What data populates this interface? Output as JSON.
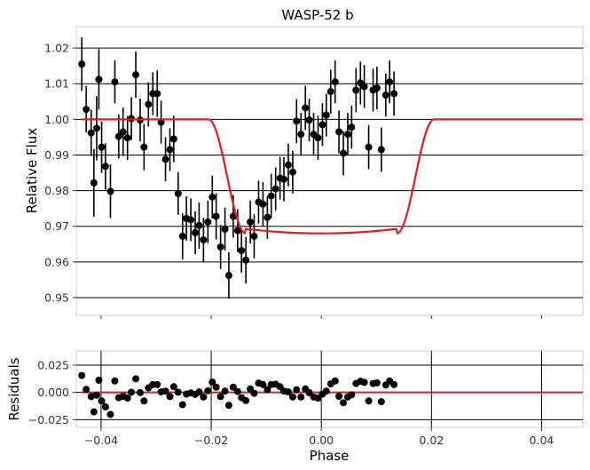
{
  "chart_data": [
    {
      "type": "scatter",
      "title": "WASP-52 b",
      "xlabel": "",
      "ylabel": "Relative Flux",
      "xlim": [
        -0.0445,
        0.0475
      ],
      "ylim": [
        0.945,
        1.026
      ],
      "grid": "horizontal",
      "x_ticks": [
        -0.04,
        -0.02,
        0.0,
        0.02,
        0.04
      ],
      "y_ticks": [
        0.95,
        0.96,
        0.97,
        0.98,
        0.99,
        1.0,
        1.01,
        1.02
      ],
      "y_tick_labels": [
        "0.95",
        "0.96",
        "0.97",
        "0.98",
        "0.99",
        "1.00",
        "1.01",
        "1.02"
      ],
      "marker_color": "#000000",
      "model_color": "#e41a1c",
      "series": [
        {
          "kind": "points_with_errors",
          "points": [
            [
              -0.0435,
              1.0155,
              0.0075
            ],
            [
              -0.0427,
              1.0028,
              0.0065
            ],
            [
              -0.0418,
              0.9962,
              0.0065
            ],
            [
              -0.0413,
              0.9822,
              0.0095
            ],
            [
              -0.0408,
              0.9975,
              0.009
            ],
            [
              -0.0404,
              1.0112,
              0.0085
            ],
            [
              -0.0399,
              0.9922,
              0.0072
            ],
            [
              -0.0392,
              0.9868,
              0.0065
            ],
            [
              -0.0383,
              0.9798,
              0.0075
            ],
            [
              -0.0375,
              1.0105,
              0.006
            ],
            [
              -0.0368,
              0.9952,
              0.0062
            ],
            [
              -0.036,
              0.9965,
              0.0068
            ],
            [
              -0.0352,
              0.9948,
              0.0062
            ],
            [
              -0.0345,
              1.0002,
              0.006
            ],
            [
              -0.0337,
              1.0125,
              0.0065
            ],
            [
              -0.0329,
              0.9998,
              0.006
            ],
            [
              -0.0322,
              0.9922,
              0.0065
            ],
            [
              -0.0314,
              1.0042,
              0.0062
            ],
            [
              -0.0306,
              1.0072,
              0.006
            ],
            [
              -0.0298,
              1.0072,
              0.0065
            ],
            [
              -0.0291,
              0.9992,
              0.006
            ],
            [
              -0.0283,
              0.9888,
              0.0062
            ],
            [
              -0.0275,
              0.9915,
              0.006
            ],
            [
              -0.0268,
              0.9945,
              0.0065
            ],
            [
              -0.026,
              0.9792,
              0.006
            ],
            [
              -0.0252,
              0.9672,
              0.0065
            ],
            [
              -0.0245,
              0.9722,
              0.0062
            ],
            [
              -0.0237,
              0.9718,
              0.006
            ],
            [
              -0.0229,
              0.9682,
              0.006
            ],
            [
              -0.0222,
              0.9702,
              0.0065
            ],
            [
              -0.0214,
              0.9662,
              0.0062
            ],
            [
              -0.0206,
              0.9712,
              0.006
            ],
            [
              -0.0198,
              0.9782,
              0.006
            ],
            [
              -0.0191,
              0.9728,
              0.0065
            ],
            [
              -0.0183,
              0.9642,
              0.0062
            ],
            [
              -0.0175,
              0.9692,
              0.006
            ],
            [
              -0.0168,
              0.9562,
              0.0065
            ],
            [
              -0.016,
              0.9728,
              0.006
            ],
            [
              -0.0152,
              0.9688,
              0.006
            ],
            [
              -0.0145,
              0.9632,
              0.0062
            ],
            [
              -0.0137,
              0.9605,
              0.0065
            ],
            [
              -0.0129,
              0.9712,
              0.006
            ],
            [
              -0.0122,
              0.9672,
              0.0062
            ],
            [
              -0.0114,
              0.9768,
              0.006
            ],
            [
              -0.0106,
              0.9762,
              0.0062
            ],
            [
              -0.0098,
              0.9725,
              0.006
            ],
            [
              -0.0091,
              0.9785,
              0.0062
            ],
            [
              -0.0083,
              0.9805,
              0.006
            ],
            [
              -0.0075,
              0.9835,
              0.006
            ],
            [
              -0.0068,
              0.9832,
              0.0062
            ],
            [
              -0.006,
              0.9872,
              0.006
            ],
            [
              -0.0052,
              0.9852,
              0.006
            ],
            [
              -0.0045,
              0.9995,
              0.0062
            ],
            [
              -0.0037,
              0.9958,
              0.006
            ],
            [
              -0.0029,
              1.0032,
              0.0062
            ],
            [
              -0.0022,
              0.9998,
              0.006
            ],
            [
              -0.0014,
              0.9958,
              0.006
            ],
            [
              -0.0006,
              0.9948,
              0.0062
            ],
            [
              0.0002,
              0.9985,
              0.006
            ],
            [
              0.0009,
              1.0012,
              0.006
            ],
            [
              0.0017,
              1.0078,
              0.0062
            ],
            [
              0.0025,
              1.0105,
              0.006
            ],
            [
              0.0032,
              0.9965,
              0.006
            ],
            [
              0.004,
              0.9905,
              0.0062
            ],
            [
              0.0048,
              0.9958,
              0.006
            ],
            [
              0.0055,
              0.9978,
              0.006
            ],
            [
              0.0063,
              1.0082,
              0.0062
            ],
            [
              0.0071,
              1.0102,
              0.006
            ],
            [
              0.0078,
              1.0092,
              0.006
            ],
            [
              0.0086,
              0.9922,
              0.0062
            ],
            [
              0.0094,
              1.0082,
              0.006
            ],
            [
              0.0101,
              1.0088,
              0.006
            ],
            [
              0.0109,
              0.9915,
              0.0062
            ],
            [
              0.0117,
              1.0068,
              0.006
            ],
            [
              0.0124,
              1.0105,
              0.006
            ],
            [
              0.0132,
              1.0072,
              0.0062
            ]
          ]
        },
        {
          "kind": "model",
          "params": {
            "baseline": 1.0,
            "depth": 0.032,
            "center": 0.0,
            "half_width": 0.0205,
            "ingress": 0.0068
          }
        }
      ]
    },
    {
      "type": "scatter",
      "title": "",
      "xlabel": "Phase",
      "ylabel": "Residuals",
      "xlim": [
        -0.0445,
        0.0475
      ],
      "ylim": [
        -0.032,
        0.038
      ],
      "grid": "both",
      "x_ticks": [
        -0.04,
        -0.02,
        0.0,
        0.02,
        0.04
      ],
      "x_tick_labels": [
        "−0.04",
        "−0.02",
        "0.00",
        "0.02",
        "0.04"
      ],
      "y_ticks": [
        -0.025,
        0.0,
        0.025
      ],
      "y_tick_labels": [
        "−0.025",
        "0.000",
        "0.025"
      ],
      "marker_color": "#000000",
      "zero_line_color": "#e41a1c",
      "series": [
        {
          "kind": "points",
          "points": [
            [
              -0.0435,
              0.0155
            ],
            [
              -0.0427,
              0.0028
            ],
            [
              -0.0418,
              -0.0038
            ],
            [
              -0.0413,
              -0.0178
            ],
            [
              -0.0408,
              -0.0025
            ],
            [
              -0.0404,
              0.0112
            ],
            [
              -0.0399,
              -0.0078
            ],
            [
              -0.0392,
              -0.0132
            ],
            [
              -0.0383,
              -0.0202
            ],
            [
              -0.0375,
              0.0105
            ],
            [
              -0.0368,
              -0.0048
            ],
            [
              -0.036,
              -0.0035
            ],
            [
              -0.0352,
              -0.0052
            ],
            [
              -0.0345,
              0.0002
            ],
            [
              -0.0337,
              0.0125
            ],
            [
              -0.0329,
              -0.0002
            ],
            [
              -0.0322,
              -0.0078
            ],
            [
              -0.0314,
              0.0042
            ],
            [
              -0.0306,
              0.0072
            ],
            [
              -0.0298,
              0.0072
            ],
            [
              -0.0291,
              0.0005
            ],
            [
              -0.0283,
              0.0012
            ],
            [
              -0.0275,
              -0.0038
            ],
            [
              -0.0268,
              0.0052
            ],
            [
              -0.026,
              0.0002
            ],
            [
              -0.0252,
              -0.0112
            ],
            [
              -0.0245,
              -0.0015
            ],
            [
              -0.0237,
              -0.0005
            ],
            [
              -0.0229,
              -0.0018
            ],
            [
              -0.0222,
              0.0005
            ],
            [
              -0.0214,
              -0.0042
            ],
            [
              -0.0206,
              0.0015
            ],
            [
              -0.0198,
              0.0095
            ],
            [
              -0.0191,
              0.0048
            ],
            [
              -0.0183,
              -0.0038
            ],
            [
              -0.0175,
              0.0012
            ],
            [
              -0.0168,
              -0.0118
            ],
            [
              -0.016,
              0.0048
            ],
            [
              -0.0152,
              0.0008
            ],
            [
              -0.0145,
              -0.0048
            ],
            [
              -0.0137,
              -0.0075
            ],
            [
              -0.0129,
              0.0032
            ],
            [
              -0.0122,
              -0.0008
            ],
            [
              -0.0114,
              0.0085
            ],
            [
              -0.0106,
              0.0072
            ],
            [
              -0.0098,
              0.0025
            ],
            [
              -0.0091,
              0.0072
            ],
            [
              -0.0083,
              0.0075
            ],
            [
              -0.0075,
              0.0052
            ],
            [
              -0.0068,
              0.0012
            ],
            [
              -0.006,
              0.0005
            ],
            [
              -0.0052,
              -0.0042
            ],
            [
              -0.0045,
              0.0025
            ],
            [
              -0.0037,
              -0.0042
            ],
            [
              -0.0029,
              0.0032
            ],
            [
              -0.0022,
              -0.0002
            ],
            [
              -0.0014,
              -0.0042
            ],
            [
              -0.0006,
              -0.0052
            ],
            [
              0.0002,
              -0.0015
            ],
            [
              0.0009,
              0.0012
            ],
            [
              0.0017,
              0.0078
            ],
            [
              0.0025,
              0.0105
            ],
            [
              0.0032,
              -0.0035
            ],
            [
              0.004,
              -0.0095
            ],
            [
              0.0048,
              -0.0042
            ],
            [
              0.0055,
              -0.0022
            ],
            [
              0.0063,
              0.0082
            ],
            [
              0.0071,
              0.0102
            ],
            [
              0.0078,
              0.0092
            ],
            [
              0.0086,
              -0.0078
            ],
            [
              0.0094,
              0.0082
            ],
            [
              0.0101,
              0.0088
            ],
            [
              0.0109,
              -0.0085
            ],
            [
              0.0117,
              0.0068
            ],
            [
              0.0124,
              0.0105
            ],
            [
              0.0132,
              0.0072
            ]
          ]
        }
      ]
    }
  ]
}
